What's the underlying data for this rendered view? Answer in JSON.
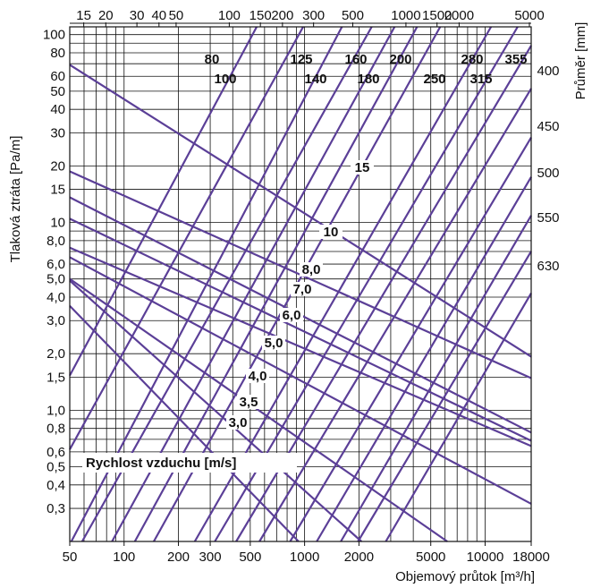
{
  "chart_data": {
    "type": "line",
    "title": "",
    "xlabel": "Objemový průtok [m³/h]",
    "ylabel": "Tlaková ztráta [Pa/m]",
    "y2label": "Průměr [mm]",
    "x_scale": "log",
    "y_scale": "log",
    "xlim": [
      50,
      18000
    ],
    "ylim": [
      0.2,
      110
    ],
    "grid": true,
    "x_ticks": [
      "50",
      "100",
      "200",
      "300",
      "500",
      "1000",
      "2000",
      "5000",
      "10000",
      "18000"
    ],
    "x_tick_values": [
      50,
      100,
      200,
      300,
      500,
      1000,
      2000,
      5000,
      10000,
      18000
    ],
    "x_top_ticks": [
      "15",
      "20",
      "30",
      "40",
      "50",
      "100",
      "150",
      "200",
      "300",
      "500",
      "1000",
      "1500",
      "2000",
      "5000"
    ],
    "x_top_tick_values": [
      15,
      20,
      30,
      40,
      50,
      100,
      150,
      200,
      300,
      500,
      1000,
      1500,
      2000,
      5000
    ],
    "y_ticks": [
      "0,3",
      "0,4",
      "0,5",
      "0,6",
      "0,8",
      "1,0",
      "1,5",
      "2,0",
      "3,0",
      "4,0",
      "5,0",
      "6,0",
      "8,0",
      "10",
      "15",
      "20",
      "30",
      "40",
      "50",
      "60",
      "80",
      "100"
    ],
    "y_tick_values": [
      0.3,
      0.4,
      0.5,
      0.6,
      0.8,
      1.0,
      1.5,
      2.0,
      3.0,
      4.0,
      5.0,
      6.0,
      8.0,
      10,
      15,
      20,
      30,
      40,
      50,
      60,
      80,
      100
    ],
    "diameter_series_mm": [
      {
        "name": "80",
        "points": [
          [
            100,
            5.3
          ],
          [
            300,
            38
          ]
        ]
      },
      {
        "name": "100",
        "points": [
          [
            200,
            6.9
          ],
          [
            500,
            34
          ]
        ]
      },
      {
        "name": "125",
        "points": [
          [
            300,
            5.1
          ],
          [
            900,
            38
          ]
        ]
      },
      {
        "name": "140",
        "points": [
          [
            500,
            7.8
          ],
          [
            1100,
            30
          ]
        ]
      },
      {
        "name": "160",
        "points": [
          [
            700,
            7.9
          ],
          [
            1500,
            30
          ]
        ]
      },
      {
        "name": "180",
        "points": [
          [
            900,
            7.4
          ],
          [
            2000,
            30
          ]
        ]
      },
      {
        "name": "200",
        "points": [
          [
            1200,
            7.6
          ],
          [
            2500,
            27
          ]
        ]
      },
      {
        "name": "250",
        "points": [
          [
            2000,
            6.6
          ],
          [
            4000,
            21
          ]
        ]
      },
      {
        "name": "280",
        "points": [
          [
            2500,
            5.8
          ],
          [
            5000,
            18
          ]
        ]
      },
      {
        "name": "315",
        "points": [
          [
            3500,
            6.2
          ],
          [
            7000,
            19
          ]
        ]
      },
      {
        "name": "355",
        "points": [
          [
            4500,
            5.6
          ],
          [
            9000,
            17
          ]
        ]
      },
      {
        "name": "400",
        "points": [
          [
            5000,
            3.6
          ],
          [
            10000,
            11
          ]
        ]
      },
      {
        "name": "450",
        "points": [
          [
            6000,
            2.9
          ],
          [
            12000,
            9.0
          ]
        ]
      },
      {
        "name": "500",
        "points": [
          [
            7000,
            2.3
          ],
          [
            14000,
            7.2
          ]
        ]
      },
      {
        "name": "550",
        "points": [
          [
            8000,
            1.9
          ],
          [
            16000,
            5.8
          ]
        ]
      },
      {
        "name": "630",
        "points": [
          [
            10000,
            1.6
          ],
          [
            18000,
            4.2
          ]
        ]
      }
    ],
    "velocity_series_m_s": [
      {
        "name": "3,0",
        "points": [
          [
            60,
            3.0
          ],
          [
            300,
            0.61
          ]
        ]
      },
      {
        "name": "3,5",
        "points": [
          [
            100,
            2.7
          ],
          [
            400,
            0.82
          ]
        ]
      },
      {
        "name": "4,0",
        "points": [
          [
            150,
            2.4
          ],
          [
            600,
            0.95
          ]
        ]
      },
      {
        "name": "5,0",
        "points": [
          [
            200,
            3.2
          ],
          [
            1000,
            1.4
          ]
        ]
      },
      {
        "name": "6,0",
        "points": [
          [
            300,
            3.5
          ],
          [
            1500,
            1.8
          ]
        ]
      },
      {
        "name": "7,0",
        "points": [
          [
            400,
            4.0
          ],
          [
            2000,
            1.9
          ]
        ]
      },
      {
        "name": "8,0",
        "points": [
          [
            500,
            4.4
          ],
          [
            2500,
            2.0
          ]
        ]
      },
      {
        "name": "10",
        "points": [
          [
            700,
            6.0
          ],
          [
            3500,
            3.0
          ]
        ]
      },
      {
        "name": "15",
        "points": [
          [
            1200,
            10.0
          ],
          [
            5000,
            4.2
          ]
        ]
      }
    ],
    "annotations": [
      "Rychlost vzduchu [m/s]"
    ]
  }
}
